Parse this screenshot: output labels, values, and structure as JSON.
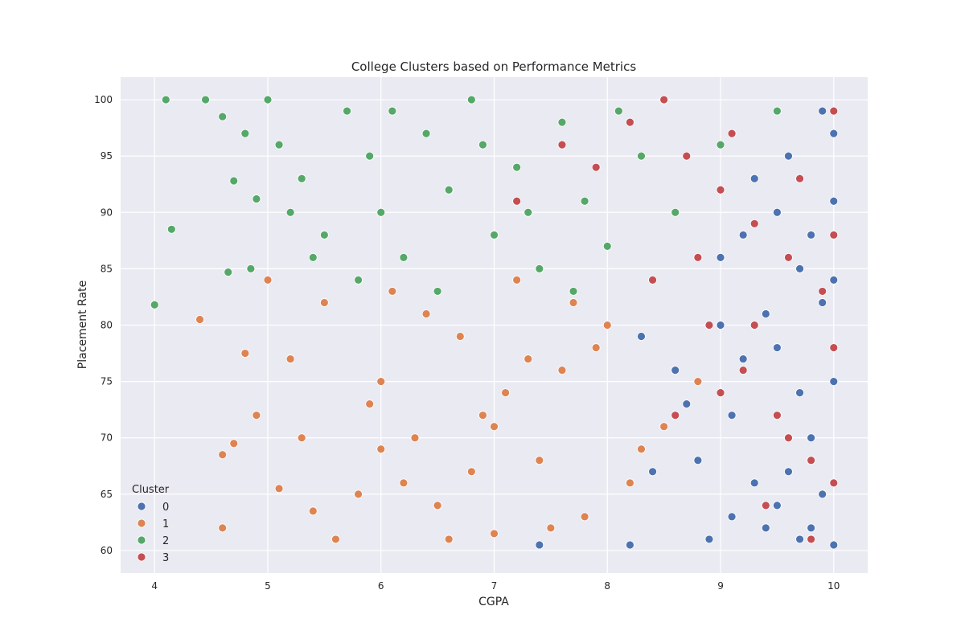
{
  "chart_data": {
    "type": "scatter",
    "title": "College Clusters based on Performance Metrics",
    "xlabel": "CGPA",
    "ylabel": "Placement Rate",
    "xlim": [
      3.7,
      10.3
    ],
    "ylim": [
      58,
      102
    ],
    "xticks": [
      4,
      5,
      6,
      7,
      8,
      9,
      10
    ],
    "yticks": [
      60,
      65,
      70,
      75,
      80,
      85,
      90,
      95,
      100
    ],
    "grid": true,
    "legend": {
      "title": "Cluster",
      "position": "lower-left"
    },
    "series": [
      {
        "name": "0",
        "color": "#4c72b0",
        "points": [
          [
            9.5,
            78
          ],
          [
            9.8,
            70
          ],
          [
            9.2,
            88
          ],
          [
            10.0,
            60.5
          ],
          [
            9.6,
            95
          ],
          [
            9.9,
            82
          ],
          [
            9.3,
            66
          ],
          [
            9.7,
            74
          ],
          [
            9.1,
            72
          ],
          [
            8.8,
            68
          ],
          [
            9.4,
            62
          ],
          [
            9.9,
            99
          ],
          [
            10.0,
            91
          ],
          [
            9.0,
            80
          ],
          [
            8.6,
            76
          ],
          [
            9.7,
            85
          ],
          [
            9.5,
            64
          ],
          [
            8.9,
            61
          ],
          [
            9.8,
            88
          ],
          [
            9.3,
            93
          ],
          [
            10.0,
            75
          ],
          [
            9.6,
            70
          ],
          [
            8.4,
            67
          ],
          [
            9.2,
            77
          ],
          [
            9.9,
            65
          ],
          [
            7.4,
            60.5
          ],
          [
            8.2,
            60.5
          ],
          [
            9.5,
            90
          ],
          [
            10.0,
            84
          ],
          [
            9.1,
            63
          ],
          [
            8.7,
            73
          ],
          [
            9.8,
            62
          ],
          [
            9.4,
            81
          ],
          [
            10.0,
            97
          ],
          [
            8.3,
            79
          ],
          [
            9.6,
            67
          ],
          [
            9.0,
            86
          ],
          [
            9.7,
            61
          ]
        ]
      },
      {
        "name": "1",
        "color": "#dd8452",
        "points": [
          [
            4.6,
            62
          ],
          [
            4.9,
            72
          ],
          [
            5.0,
            84
          ],
          [
            4.4,
            80.5
          ],
          [
            4.6,
            68.5
          ],
          [
            4.7,
            69.5
          ],
          [
            5.2,
            77
          ],
          [
            5.5,
            82
          ],
          [
            5.8,
            65
          ],
          [
            6.0,
            75
          ],
          [
            6.3,
            70
          ],
          [
            6.5,
            64
          ],
          [
            6.7,
            79
          ],
          [
            6.9,
            72
          ],
          [
            7.0,
            61.5
          ],
          [
            7.2,
            84
          ],
          [
            7.4,
            68
          ],
          [
            7.6,
            76
          ],
          [
            7.8,
            63
          ],
          [
            8.0,
            80
          ],
          [
            8.2,
            66
          ],
          [
            8.5,
            71
          ],
          [
            6.1,
            83
          ],
          [
            5.6,
            61
          ],
          [
            5.3,
            70
          ],
          [
            6.4,
            81
          ],
          [
            6.8,
            67
          ],
          [
            7.1,
            74
          ],
          [
            7.5,
            62
          ],
          [
            7.9,
            78
          ],
          [
            8.3,
            69
          ],
          [
            8.8,
            75
          ],
          [
            6.6,
            61
          ],
          [
            5.9,
            73
          ],
          [
            6.2,
            66
          ],
          [
            7.3,
            77
          ],
          [
            4.8,
            77.5
          ],
          [
            5.1,
            65.5
          ],
          [
            5.4,
            63.5
          ],
          [
            7.7,
            82
          ],
          [
            6.0,
            69
          ],
          [
            7.0,
            71
          ]
        ]
      },
      {
        "name": "2",
        "color": "#55a868",
        "points": [
          [
            4.1,
            100
          ],
          [
            4.45,
            100
          ],
          [
            4.0,
            81.8
          ],
          [
            4.15,
            88.5
          ],
          [
            4.6,
            98.5
          ],
          [
            4.7,
            92.8
          ],
          [
            4.65,
            84.7
          ],
          [
            4.8,
            97
          ],
          [
            4.9,
            91.2
          ],
          [
            5.0,
            100
          ],
          [
            5.1,
            96
          ],
          [
            5.3,
            93
          ],
          [
            5.5,
            88
          ],
          [
            5.7,
            99
          ],
          [
            5.9,
            95
          ],
          [
            6.0,
            90
          ],
          [
            6.2,
            86
          ],
          [
            6.4,
            97
          ],
          [
            6.6,
            92
          ],
          [
            6.8,
            100
          ],
          [
            7.0,
            88
          ],
          [
            7.2,
            94
          ],
          [
            7.4,
            85
          ],
          [
            7.6,
            98
          ],
          [
            7.8,
            91
          ],
          [
            8.0,
            87
          ],
          [
            8.3,
            95
          ],
          [
            8.6,
            90
          ],
          [
            9.0,
            96
          ],
          [
            9.5,
            99
          ],
          [
            5.2,
            90
          ],
          [
            5.8,
            84
          ],
          [
            6.1,
            99
          ],
          [
            6.5,
            83
          ],
          [
            6.9,
            96
          ],
          [
            7.3,
            90
          ],
          [
            7.7,
            83
          ],
          [
            8.1,
            99
          ],
          [
            5.4,
            86
          ],
          [
            4.85,
            85
          ]
        ]
      },
      {
        "name": "3",
        "color": "#c44e52",
        "points": [
          [
            8.5,
            100
          ],
          [
            8.7,
            95
          ],
          [
            9.0,
            92
          ],
          [
            9.3,
            89
          ],
          [
            9.6,
            86
          ],
          [
            9.9,
            83
          ],
          [
            8.9,
            80
          ],
          [
            9.2,
            76
          ],
          [
            9.5,
            72
          ],
          [
            9.8,
            68
          ],
          [
            9.4,
            64
          ],
          [
            10.0,
            99
          ],
          [
            10.0,
            88
          ],
          [
            10.0,
            78
          ],
          [
            10.0,
            66
          ],
          [
            9.1,
            97
          ],
          [
            8.8,
            86
          ],
          [
            8.2,
            98
          ],
          [
            7.6,
            96
          ],
          [
            7.9,
            94
          ],
          [
            8.4,
            84
          ],
          [
            9.7,
            93
          ],
          [
            9.3,
            80
          ],
          [
            9.6,
            70
          ],
          [
            9.0,
            74
          ],
          [
            9.8,
            61
          ],
          [
            8.6,
            72
          ],
          [
            7.2,
            91
          ]
        ]
      }
    ]
  }
}
